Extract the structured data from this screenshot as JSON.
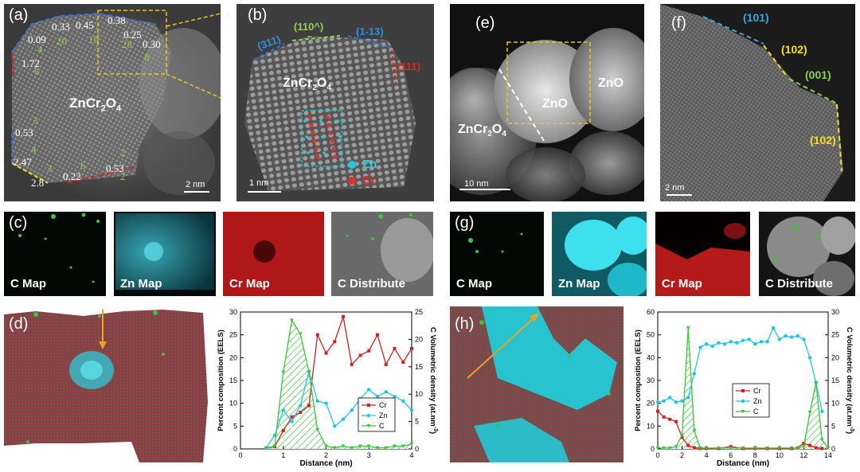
{
  "panels": {
    "a": {
      "tag": "(a)",
      "material": "ZnCr",
      "sub_2": "2",
      "o": "O",
      "sub_4": "4",
      "scalebar": "2 nm",
      "white_numbers": [
        "0.09",
        "0.33",
        "0.45",
        "0.38",
        "0.25",
        "0.30",
        "1.72",
        "0.53",
        "2.47",
        "2.8",
        "0.22",
        "0.53"
      ],
      "green_numbers": [
        "20",
        "19",
        "28",
        "8",
        "4",
        "6",
        "3",
        "4",
        "3",
        "6",
        "2",
        "2"
      ]
    },
    "b": {
      "tag": "(b)",
      "material": "ZnCr",
      "sub_2": "2",
      "o": "O",
      "sub_4": "4",
      "scalebar": "1 nm",
      "faces": [
        "(311)",
        "(110^)",
        "(1-13)",
        "(111)"
      ],
      "legend_zn": "Zn",
      "legend_cr": "Cr"
    },
    "e": {
      "tag": "(e)",
      "zno_1": "ZnO",
      "zno_2": "ZnO",
      "material": "ZnCr",
      "sub_2": "2",
      "o": "O",
      "sub_4": "4",
      "scalebar": "10 nm"
    },
    "f": {
      "tag": "(f)",
      "faces": [
        "(101)",
        "(102)",
        "(001)",
        "(102)"
      ],
      "scalebar": "2 nm"
    },
    "c": {
      "tag": "(c)",
      "maps": [
        "C Map",
        "Zn Map",
        "Cr Map",
        "C Distribute"
      ]
    },
    "g": {
      "tag": "(g)",
      "maps": [
        "C Map",
        "Zn Map",
        "Cr Map",
        "C Distribute"
      ]
    },
    "d": {
      "tag": "(d)"
    },
    "h": {
      "tag": "(h)"
    }
  },
  "colors": {
    "cr": "#d42020",
    "zn": "#1ec8de",
    "c": "#3cc43c"
  },
  "chart_data": [
    {
      "type": "line",
      "panel": "d",
      "xlabel": "Distance (nm)",
      "ylabel": "Percent composition (EELS)",
      "y2label": "C Volumetric density (at.nm",
      "y2label_sup": "-3",
      "y2label_end": ")",
      "xlim": [
        0,
        4
      ],
      "ylim": [
        0,
        30
      ],
      "y2lim": [
        0,
        25
      ],
      "xticks": [
        "0",
        "1",
        "2",
        "3",
        "4"
      ],
      "yticks": [
        "0",
        "5",
        "10",
        "15",
        "20",
        "25",
        "30"
      ],
      "y2ticks": [
        "0",
        "5",
        "10",
        "15",
        "20",
        "25"
      ],
      "series": [
        {
          "name": "Cr",
          "axis": "left",
          "color": "#d42020",
          "marker": "square",
          "x": [
            0.6,
            0.8,
            1.0,
            1.2,
            1.4,
            1.6,
            1.8,
            2.0,
            2.2,
            2.4,
            2.6,
            2.8,
            3.0,
            3.2,
            3.4,
            3.6,
            3.8,
            4.0
          ],
          "y": [
            0.2,
            0.5,
            4.0,
            7.0,
            8.0,
            9.5,
            25.0,
            21.0,
            23.5,
            29.0,
            18.5,
            20.5,
            21.5,
            25.0,
            18.5,
            22.0,
            19.0,
            22.0
          ]
        },
        {
          "name": "Zn",
          "axis": "left",
          "color": "#1ec8de",
          "marker": "circle",
          "x": [
            0.6,
            0.8,
            1.0,
            1.2,
            1.4,
            1.6,
            1.8,
            2.0,
            2.2,
            2.4,
            2.6,
            2.8,
            3.0,
            3.2,
            3.4,
            3.6,
            3.8,
            4.0
          ],
          "y": [
            0.2,
            3.0,
            8.5,
            6.0,
            9.5,
            17.0,
            10.5,
            10.0,
            5.0,
            6.5,
            8.5,
            11.0,
            13.0,
            11.5,
            12.5,
            11.5,
            10.5,
            8.5
          ]
        },
        {
          "name": "C",
          "axis": "right",
          "color": "#3cc43c",
          "marker": "triangle",
          "fill": "hatch",
          "x": [
            0.6,
            0.8,
            1.0,
            1.2,
            1.4,
            1.6,
            1.8,
            2.0,
            2.2,
            2.4,
            2.6,
            2.8,
            3.0,
            3.2,
            3.4,
            3.6,
            3.8,
            4.0
          ],
          "y": [
            0.2,
            0.5,
            14.0,
            23.5,
            21.0,
            14.0,
            3.5,
            0.5,
            0.2,
            0.5,
            0.2,
            0.5,
            0.5,
            0.2,
            0.2,
            0.5,
            0.5,
            0.9
          ]
        }
      ],
      "legend": "bottom-right"
    },
    {
      "type": "line",
      "panel": "h",
      "xlabel": "Distance (nm)",
      "ylabel": "Percent composition (EELS)",
      "y2label": "C Volumetric density (at.nm",
      "y2label_sup": "-3",
      "y2label_end": ")",
      "xlim": [
        0,
        14
      ],
      "ylim": [
        0,
        60
      ],
      "y2lim": [
        0,
        30
      ],
      "xticks": [
        "0",
        "2",
        "4",
        "6",
        "8",
        "10",
        "12",
        "14"
      ],
      "yticks": [
        "0",
        "10",
        "20",
        "30",
        "40",
        "50",
        "60"
      ],
      "y2ticks": [
        "0",
        "5",
        "10",
        "15",
        "20",
        "25",
        "30"
      ],
      "series": [
        {
          "name": "Cr",
          "axis": "left",
          "color": "#d42020",
          "marker": "square",
          "x": [
            0,
            0.5,
            1.0,
            1.5,
            2.0,
            2.5,
            3.0,
            3.5,
            4.0,
            5.0,
            6.0,
            7.0,
            8.0,
            9.0,
            10.0,
            11.0,
            11.5,
            12.0,
            12.5,
            13.0,
            13.5
          ],
          "y": [
            16.5,
            14.0,
            13.0,
            12.0,
            5.0,
            1.5,
            0.5,
            0.2,
            0.2,
            0.2,
            1.0,
            0.2,
            0.2,
            0.2,
            0.2,
            0.2,
            0.5,
            2.5,
            1.5,
            0.5,
            0.2
          ]
        },
        {
          "name": "Zn",
          "axis": "left",
          "color": "#1ec8de",
          "marker": "circle",
          "x": [
            0,
            0.5,
            1.0,
            1.5,
            2.0,
            2.5,
            3.0,
            3.5,
            4.0,
            4.5,
            5.0,
            5.5,
            6.0,
            6.5,
            7.0,
            7.5,
            8.0,
            8.5,
            9.0,
            9.5,
            10.0,
            10.5,
            11.0,
            11.5,
            12.0,
            12.5,
            13.0,
            13.5
          ],
          "y": [
            20.5,
            21.0,
            22.5,
            20.5,
            21.0,
            22.5,
            33.0,
            44.5,
            46.0,
            45.0,
            46.5,
            46.0,
            47.0,
            46.5,
            47.5,
            48.0,
            46.0,
            47.0,
            47.0,
            53.0,
            48.0,
            49.5,
            49.0,
            49.5,
            48.0,
            40.0,
            29.0,
            16.5
          ]
        },
        {
          "name": "C",
          "axis": "right",
          "color": "#3cc43c",
          "marker": "triangle",
          "fill": "hatch",
          "x": [
            0,
            0.5,
            1.0,
            1.5,
            2.0,
            2.5,
            3.0,
            3.5,
            4.0,
            5.0,
            6.0,
            7.0,
            8.0,
            9.0,
            10.0,
            11.0,
            11.5,
            12.0,
            12.5,
            13.0,
            13.5,
            14.0
          ],
          "y": [
            0.2,
            0.2,
            0.2,
            0.5,
            3.0,
            26.5,
            4.0,
            0.2,
            0.2,
            0.2,
            0.2,
            0.2,
            0.2,
            0.2,
            0.2,
            0.2,
            0.2,
            0.5,
            8.0,
            14.5,
            2.0,
            0.2
          ]
        }
      ],
      "legend": "bottom-center"
    }
  ]
}
